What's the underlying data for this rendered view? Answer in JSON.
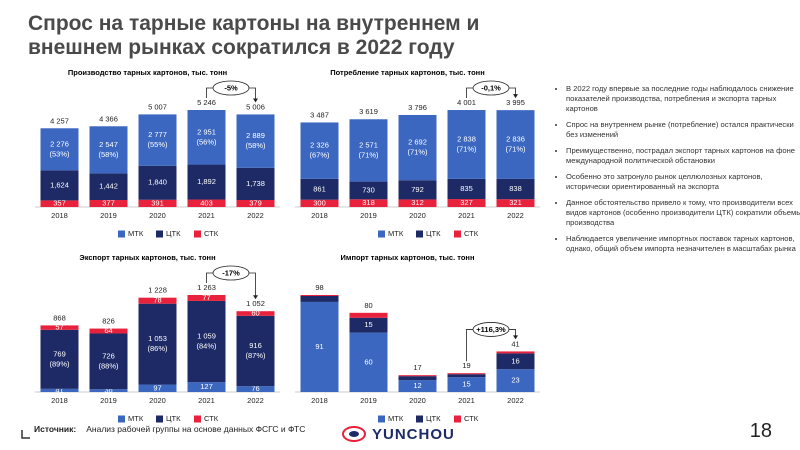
{
  "slide": {
    "title": "Спрос на тарные картоны на внутреннем и внешнем рынках сократился в 2022 году",
    "bullets": [
      "В 2022 году впервые за последние годы наблюдалось снижение показателей производства, потребления и экспорта тарных картонов",
      "Спрос на внутреннем рынке (потребление) остался практически без изменений",
      "Преимущественно, пострадал экспорт тарных картонов на фоне международной политической обстановки",
      "Особенно это затронуло рынок целлюлозных картонов, исторически ориентированный на экспорта",
      "Данное обстоятельство привело к тому, что производители всех видов картонов (особенно производители ЦТК) сократили объемы производства",
      "Наблюдается увеличение импортных поставок тарных картонов, однако, общий объем импорта незначителен в масштабах рынка"
    ],
    "source_label": "Источник:",
    "source": "Анализ рабочей группы на основе данных ФСГС и ФТС",
    "logo": "YUNCHOU",
    "page": "18"
  },
  "chart_data": [
    {
      "type": "stacked_bar",
      "title": "Производство тарных картонов, тыс. тонн",
      "categories": [
        "2018",
        "2019",
        "2020",
        "2021",
        "2022"
      ],
      "stack_from": "top",
      "series": [
        {
          "name": "МТК",
          "color": "#3b67c0",
          "values": [
            2276,
            2547,
            2777,
            2951,
            2889
          ],
          "value_labels": [
            "2 276",
            "2 547",
            "2 777",
            "2 951",
            "2 889"
          ],
          "share_labels": [
            "(53%)",
            "(58%)",
            "(55%)",
            "(56%)",
            "(58%)"
          ]
        },
        {
          "name": "ЦТК",
          "color": "#1d2a66",
          "values": [
            1624,
            1442,
            1840,
            1892,
            1738
          ],
          "value_labels": [
            "1,624",
            "1,442",
            "1,840",
            "1,892",
            "1,738"
          ]
        },
        {
          "name": "СТК",
          "color": "#e8213c",
          "values": [
            357,
            377,
            391,
            403,
            379
          ],
          "value_labels": [
            "357",
            "377",
            "391",
            "403",
            "379"
          ]
        }
      ],
      "totals": [
        4257,
        4366,
        5007,
        5246,
        5006
      ],
      "total_labels": [
        "4 257",
        "4 366",
        "5 007",
        "5 246",
        "5 006"
      ],
      "annotation": "-5%"
    },
    {
      "type": "stacked_bar",
      "title": "Потребление тарных картонов, тыс. тонн",
      "categories": [
        "2018",
        "2019",
        "2020",
        "2021",
        "2022"
      ],
      "stack_from": "top",
      "series": [
        {
          "name": "МТК",
          "color": "#3b67c0",
          "values": [
            2326,
            2571,
            2692,
            2838,
            2836
          ],
          "value_labels": [
            "2 326",
            "2 571",
            "2 692",
            "2 838",
            "2 836"
          ],
          "share_labels": [
            "(67%)",
            "(71%)",
            "(71%)",
            "(71%)",
            "(71%)"
          ]
        },
        {
          "name": "ЦТК",
          "color": "#1d2a66",
          "values": [
            861,
            730,
            792,
            835,
            838
          ],
          "value_labels": [
            "861",
            "730",
            "792",
            "835",
            "838"
          ]
        },
        {
          "name": "СТК",
          "color": "#e8213c",
          "values": [
            300,
            318,
            312,
            327,
            321
          ],
          "value_labels": [
            "300",
            "318",
            "312",
            "327",
            "321"
          ]
        }
      ],
      "totals": [
        3487,
        3619,
        3796,
        4001,
        3995
      ],
      "total_labels": [
        "3 487",
        "3 619",
        "3 796",
        "4 001",
        "3 995"
      ],
      "annotation": "-0,1%"
    },
    {
      "type": "stacked_bar",
      "title": "Экспорт тарных картонов, тыс. тонн",
      "categories": [
        "2018",
        "2019",
        "2020",
        "2021",
        "2022"
      ],
      "stack_from": "bottom",
      "series": [
        {
          "name": "МТК",
          "color": "#3b67c0",
          "values": [
            41,
            36,
            97,
            127,
            76
          ],
          "value_labels": [
            "41",
            "36",
            "97",
            "127",
            "76"
          ]
        },
        {
          "name": "ЦТК",
          "color": "#1d2a66",
          "values": [
            769,
            726,
            1053,
            1059,
            916
          ],
          "value_labels": [
            "769",
            "726",
            "1 053",
            "1 059",
            "916"
          ],
          "share_labels": [
            "(89%)",
            "(88%)",
            "(86%)",
            "(84%)",
            "(87%)"
          ]
        },
        {
          "name": "СТК",
          "color": "#e8213c",
          "values": [
            57,
            64,
            78,
            77,
            60
          ],
          "value_labels": [
            "57",
            "64",
            "78",
            "77",
            "60"
          ]
        }
      ],
      "totals": [
        868,
        826,
        1228,
        1263,
        1052
      ],
      "total_labels": [
        "868",
        "826",
        "1 228",
        "1 263",
        "1 052"
      ],
      "annotation": "-17%"
    },
    {
      "type": "stacked_bar",
      "title": "Импорт тарных картонов, тыс. тонн",
      "categories": [
        "2018",
        "2019",
        "2020",
        "2021",
        "2022"
      ],
      "stack_from": "bottom",
      "series": [
        {
          "name": "МТК",
          "color": "#3b67c0",
          "values": [
            91,
            60,
            12,
            15,
            23
          ],
          "value_labels": [
            "91",
            "60",
            "12",
            "15",
            "23"
          ]
        },
        {
          "name": "ЦТК",
          "color": "#1d2a66",
          "values": [
            6,
            15,
            4,
            3,
            16
          ],
          "value_labels": [
            null,
            "15",
            null,
            null,
            "16"
          ]
        },
        {
          "name": "СТК",
          "color": "#e8213c",
          "values": [
            1,
            5,
            1,
            1,
            2
          ],
          "value_labels": [
            null,
            null,
            null,
            null,
            null
          ]
        }
      ],
      "totals": [
        98,
        80,
        17,
        19,
        41
      ],
      "total_labels": [
        "98",
        "80",
        "17",
        "19",
        "41"
      ],
      "annotation": "+116,3%"
    }
  ]
}
